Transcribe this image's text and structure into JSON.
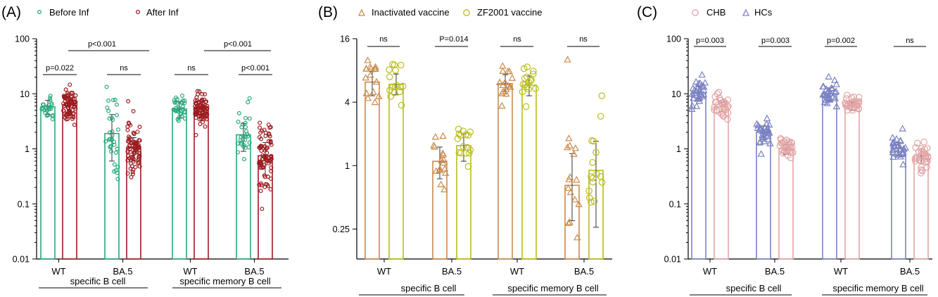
{
  "chart_data": [
    {
      "panel": "(A)",
      "type": "bar",
      "scale": "log",
      "ylim": [
        0.01,
        100
      ],
      "yticks": [
        "0.01",
        "0.1",
        "1",
        "10",
        "100"
      ],
      "categories": [
        "WT",
        "BA.5",
        "WT",
        "BA.5"
      ],
      "groups": [
        "specific B cell",
        "specific memory B cell"
      ],
      "series": [
        {
          "name": "Before Inf",
          "color": "#2aa87e",
          "marker": "circle",
          "values": [
            5.8,
            1.9,
            5.3,
            1.8
          ],
          "err_high": [
            7.6,
            4.2,
            7.2,
            2.9
          ],
          "err_low": [
            4.2,
            0.6,
            3.6,
            0.9
          ],
          "n": [
            26,
            34,
            32,
            30
          ]
        },
        {
          "name": "After Inf",
          "color": "#9b1b1f",
          "marker": "circle",
          "values": [
            6.2,
            1.05,
            5.6,
            0.75
          ],
          "err_high": [
            8.2,
            1.6,
            7.4,
            1.3
          ],
          "err_low": [
            4.6,
            0.6,
            4.2,
            0.33
          ],
          "n": [
            80,
            80,
            80,
            80
          ]
        }
      ],
      "annotations": [
        "p<0.001",
        "p=0.022",
        "ns",
        "p<0.001",
        "ns",
        "p<0.001"
      ]
    },
    {
      "panel": "(B)",
      "type": "bar",
      "scale": "log2",
      "ylim": [
        0.13,
        16
      ],
      "yticks": [
        "0.25",
        "1",
        "4",
        "16"
      ],
      "categories": [
        "WT",
        "BA.5",
        "WT",
        "BA.5"
      ],
      "groups": [
        "specific B cell",
        "specific memory B cell"
      ],
      "series": [
        {
          "name": "Inactivated vaccine",
          "color": "#c98b4c",
          "marker": "triangle",
          "values": [
            6.2,
            1.1,
            6.0,
            0.65
          ],
          "err_high": [
            7.8,
            1.5,
            7.3,
            1.3
          ],
          "err_low": [
            4.6,
            0.75,
            4.8,
            0.3
          ],
          "n": [
            16,
            16,
            16,
            16
          ]
        },
        {
          "name": "ZF2001 vaccine",
          "color": "#b8bd1c",
          "marker": "circle",
          "values": [
            5.9,
            1.55,
            5.8,
            0.9
          ],
          "err_high": [
            7.4,
            2.0,
            7.1,
            1.7
          ],
          "err_low": [
            4.7,
            1.1,
            4.6,
            0.26
          ],
          "n": [
            16,
            16,
            16,
            16
          ]
        }
      ],
      "annotations": [
        "ns",
        "P=0.014",
        "ns",
        "ns"
      ]
    },
    {
      "panel": "(C)",
      "type": "bar",
      "scale": "log",
      "ylim": [
        0.01,
        100
      ],
      "yticks": [
        "0.01",
        "0.1",
        "1",
        "10",
        "100"
      ],
      "categories": [
        "WT",
        "BA.5",
        "WT",
        "BA.5"
      ],
      "groups": [
        "specific B cell",
        "specific memory B cell"
      ],
      "series": [
        {
          "name": "HCs",
          "color": "#7b82c4",
          "marker": "triangle",
          "values": [
            10.5,
            2.0,
            10.0,
            1.0
          ],
          "err_high": [
            13.5,
            2.6,
            12.8,
            1.3
          ],
          "err_low": [
            8.0,
            1.5,
            7.6,
            0.75
          ],
          "n": [
            30,
            30,
            30,
            30
          ]
        },
        {
          "name": "CHB",
          "color": "#e2a5a5",
          "marker": "circle",
          "values": [
            5.8,
            1.0,
            6.0,
            0.75
          ],
          "err_high": [
            7.0,
            1.2,
            7.0,
            1.0
          ],
          "err_low": [
            4.8,
            0.8,
            5.0,
            0.55
          ],
          "n": [
            30,
            30,
            30,
            30
          ]
        }
      ],
      "annotations": [
        "p=0.003",
        "p=0.003",
        "p=0.002",
        "ns"
      ]
    }
  ],
  "legend_order": [
    [
      "Before Inf",
      "After Inf"
    ],
    [
      "Inactivated vaccine",
      "ZF2001 vaccine"
    ],
    [
      "CHB",
      "HCs"
    ]
  ]
}
